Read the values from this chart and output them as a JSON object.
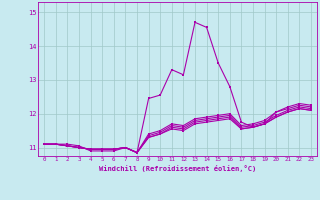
{
  "xlabel": "Windchill (Refroidissement éolien,°C)",
  "bg_color": "#c8eaf0",
  "line_color": "#aa00aa",
  "grid_color": "#a0c8c8",
  "xlim": [
    -0.5,
    23.5
  ],
  "ylim": [
    10.75,
    15.3
  ],
  "xticks": [
    0,
    1,
    2,
    3,
    4,
    5,
    6,
    7,
    8,
    9,
    10,
    11,
    12,
    13,
    14,
    15,
    16,
    17,
    18,
    19,
    20,
    21,
    22,
    23
  ],
  "yticks": [
    11,
    12,
    13,
    14,
    15
  ],
  "series": [
    [
      11.1,
      11.1,
      11.1,
      11.05,
      10.9,
      10.9,
      10.9,
      11.0,
      10.85,
      12.45,
      12.55,
      13.3,
      13.15,
      14.7,
      14.55,
      13.5,
      12.8,
      11.75,
      11.6,
      11.7,
      12.05,
      12.15,
      12.25,
      12.2
    ],
    [
      11.1,
      11.1,
      11.05,
      11.0,
      10.95,
      10.95,
      10.95,
      11.0,
      10.85,
      11.3,
      11.4,
      11.55,
      11.5,
      11.7,
      11.75,
      11.8,
      11.85,
      11.55,
      11.6,
      11.7,
      11.9,
      12.05,
      12.15,
      12.1
    ],
    [
      11.1,
      11.1,
      11.05,
      11.0,
      10.95,
      10.95,
      10.95,
      11.0,
      10.85,
      11.3,
      11.4,
      11.6,
      11.55,
      11.75,
      11.8,
      11.85,
      11.9,
      11.55,
      11.6,
      11.7,
      11.9,
      12.05,
      12.15,
      12.1
    ],
    [
      11.1,
      11.1,
      11.05,
      11.0,
      10.95,
      10.95,
      10.95,
      11.0,
      10.85,
      11.35,
      11.45,
      11.65,
      11.6,
      11.8,
      11.85,
      11.9,
      11.95,
      11.6,
      11.65,
      11.75,
      11.95,
      12.1,
      12.2,
      12.15
    ],
    [
      11.1,
      11.1,
      11.05,
      11.0,
      10.95,
      10.95,
      10.95,
      11.0,
      10.85,
      11.4,
      11.5,
      11.7,
      11.65,
      11.85,
      11.9,
      11.95,
      12.0,
      11.65,
      11.7,
      11.8,
      12.05,
      12.2,
      12.3,
      12.25
    ]
  ]
}
